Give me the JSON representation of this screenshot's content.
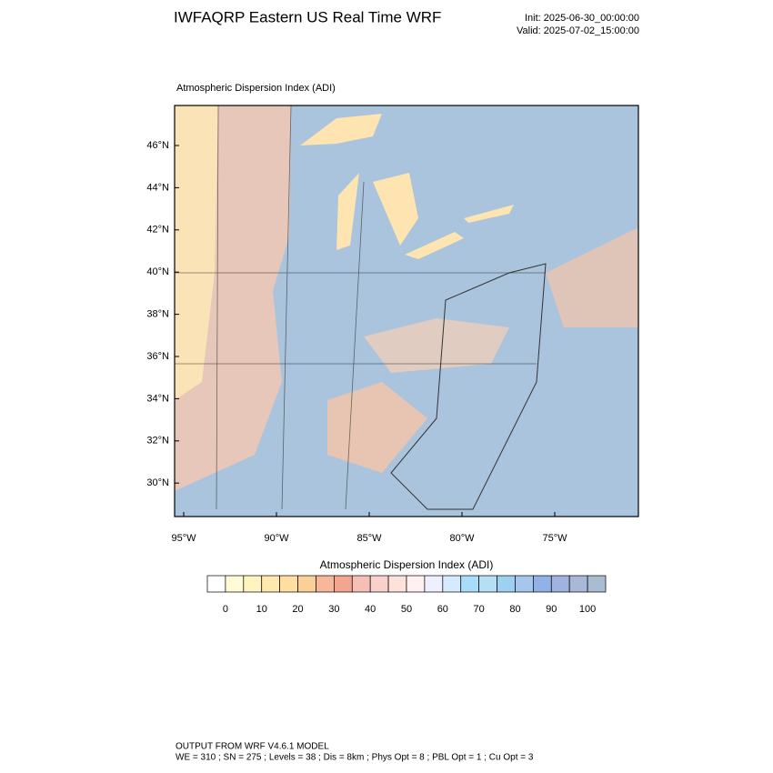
{
  "header": {
    "title": "IWFAQRP Eastern US Real Time WRF",
    "init": "Init: 2025-06-30_00:00:00",
    "valid": "Valid: 2025-07-02_15:00:00"
  },
  "map": {
    "label": "Atmospheric Dispersion Index   (ADI)",
    "lat_labels": [
      "46°N",
      "44°N",
      "42°N",
      "40°N",
      "38°N",
      "36°N",
      "34°N",
      "32°N",
      "30°N"
    ],
    "lon_labels": [
      "95°W",
      "90°W",
      "85°W",
      "80°W",
      "75°W"
    ]
  },
  "colorbar": {
    "title": "Atmospheric Dispersion Index  (ADI)",
    "labels": [
      0,
      10,
      20,
      30,
      40,
      50,
      60,
      70,
      80,
      90,
      100
    ],
    "colors": [
      "#ffffff",
      "#fffbd6",
      "#fff3c0",
      "#ffe8ae",
      "#ffdea0",
      "#fbcf98",
      "#f6b79a",
      "#f3a58f",
      "#f6bfb6",
      "#fad1ca",
      "#fde2dc",
      "#fff1f1",
      "#eef0ff",
      "#d6eaff",
      "#a8dcf8",
      "#b6def4",
      "#9ed0f0",
      "#a6c6ee",
      "#90b2e6",
      "#a0b2de",
      "#a8b8d8",
      "#a8bcd2"
    ]
  },
  "footer": {
    "line1": "OUTPUT FROM WRF V4.6.1 MODEL",
    "line2": "WE = 310 ; SN = 275 ; Levels = 38 ; Dis = 8km ; Phys Opt = 8 ; PBL Opt = 1 ; Cu Opt = 3"
  }
}
